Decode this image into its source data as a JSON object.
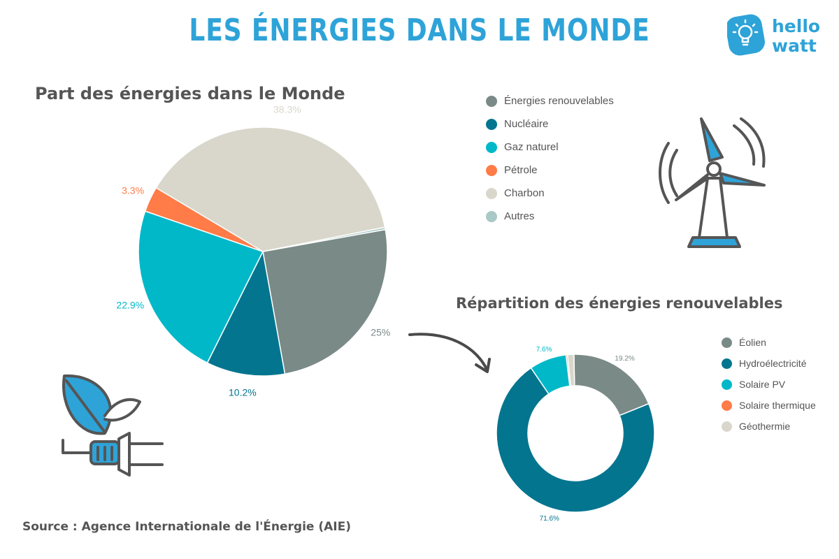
{
  "header": {
    "title": "LES ÉNERGIES DANS LE MONDE"
  },
  "logo": {
    "line1": "hello",
    "line2": "watt",
    "icon": "lightbulb-icon"
  },
  "source": "Source : Agence Internationale de l'Énergie (AIE)",
  "icons": [
    "wind-turbine-icon",
    "leaf-plug-icon",
    "curved-arrow-icon"
  ],
  "colors": {
    "renouvelables": "#7a8a87",
    "nucleaire": "#03758f",
    "gaz": "#00b8c8",
    "petrole": "#ff7b47",
    "charbon": "#d9d7cb",
    "autres": "#a8c9c6",
    "accent": "#2ea3d8"
  },
  "chart_data": [
    {
      "type": "pie",
      "title": "Part des énergies dans le Monde",
      "legend_placement": "right",
      "slices": [
        {
          "name": "Énergies renouvelables",
          "value": 25,
          "label": "25%",
          "color": "#7a8a87"
        },
        {
          "name": "Nucléaire",
          "value": 10.2,
          "label": "10.2%",
          "color": "#03758f"
        },
        {
          "name": "Gaz naturel",
          "value": 22.9,
          "label": "22.9%",
          "color": "#00b8c8"
        },
        {
          "name": "Pétrole",
          "value": 3.3,
          "label": "3.3%",
          "color": "#ff7b47"
        },
        {
          "name": "Charbon",
          "value": 38.3,
          "label": "38.3%",
          "color": "#d9d7cb"
        },
        {
          "name": "Autres",
          "value": 0.3,
          "label": "",
          "color": "#a8c9c6"
        }
      ]
    },
    {
      "type": "pie",
      "variant": "donut",
      "title": "Répartition des énergies renouvelables",
      "legend_placement": "right",
      "slices": [
        {
          "name": "Éolien",
          "value": 19.2,
          "label": "19.2%",
          "color": "#7a8a87"
        },
        {
          "name": "Hydroélectricité",
          "value": 71.6,
          "label": "71.6%",
          "color": "#03758f"
        },
        {
          "name": "Solaire PV",
          "value": 7.6,
          "label": "7.6%",
          "color": "#00b8c8"
        },
        {
          "name": "Solaire thermique",
          "value": 0.3,
          "label": "",
          "color": "#ff7b47"
        },
        {
          "name": "Géothermie",
          "value": 1.3,
          "label": "",
          "color": "#d9d7cb"
        }
      ]
    }
  ]
}
